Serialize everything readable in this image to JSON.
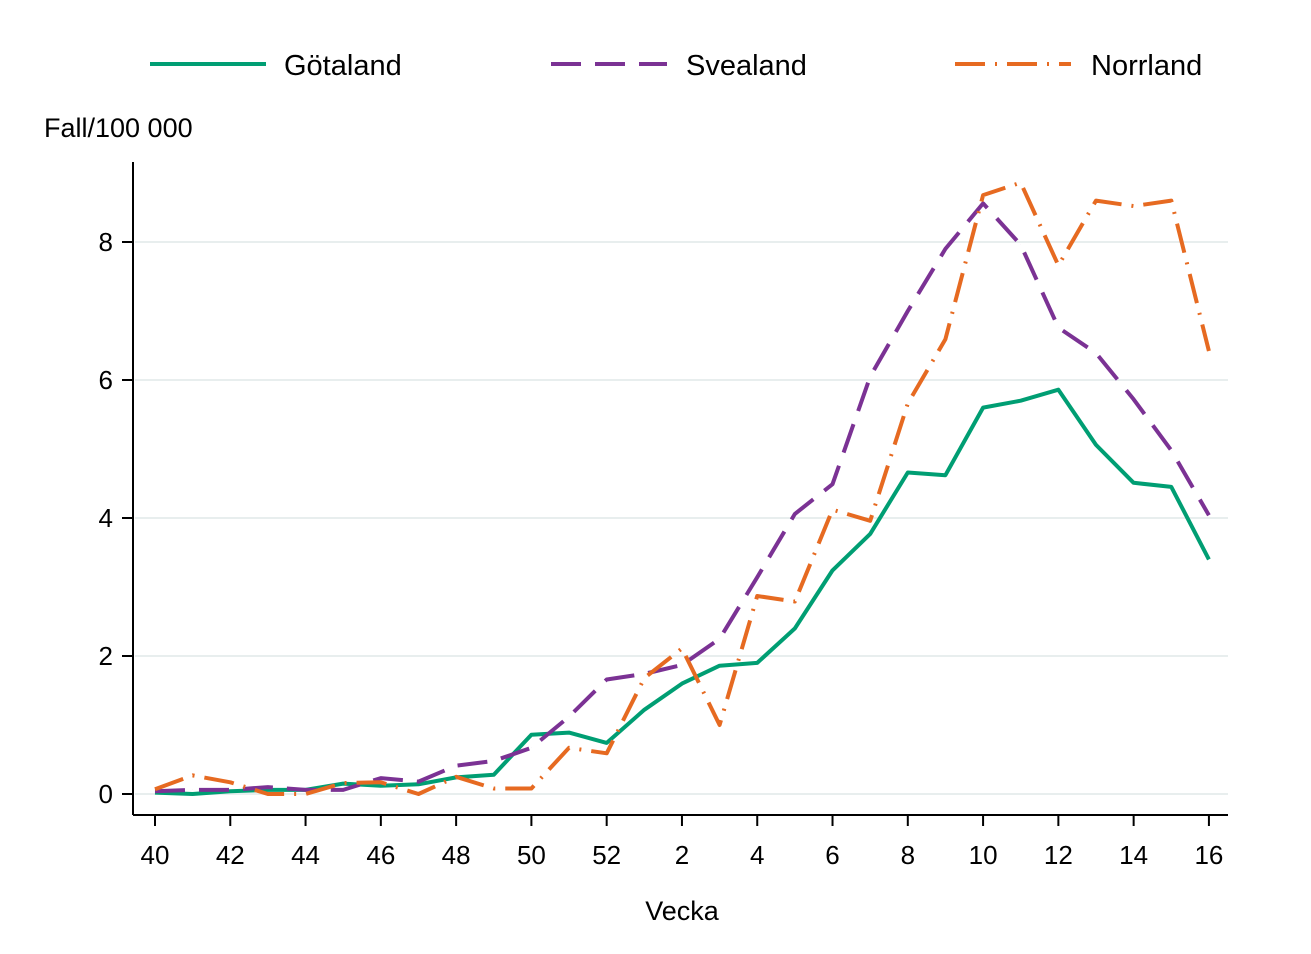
{
  "chart_data": {
    "type": "line",
    "title": "",
    "xlabel": "Vecka",
    "ylabel": "Fall/100 000",
    "ylim": [
      0,
      9
    ],
    "yticks": [
      0,
      2,
      4,
      6,
      8
    ],
    "grid": "horizontal",
    "legend_position": "top",
    "categories": [
      "40",
      "41",
      "42",
      "43",
      "44",
      "45",
      "46",
      "47",
      "48",
      "49",
      "50",
      "51",
      "52",
      "1",
      "2",
      "3",
      "4",
      "5",
      "6",
      "7",
      "8",
      "9",
      "10",
      "11",
      "12",
      "13",
      "14",
      "15",
      "16"
    ],
    "tick_labels": [
      "40",
      "42",
      "44",
      "46",
      "48",
      "50",
      "52",
      "2",
      "4",
      "6",
      "8",
      "10",
      "12",
      "14",
      "16"
    ],
    "series": [
      {
        "name": "Götaland",
        "color": "#009E73",
        "style": "solid",
        "values": [
          0.02,
          0.0,
          0.04,
          0.06,
          0.06,
          0.15,
          0.12,
          0.14,
          0.24,
          0.28,
          0.86,
          0.89,
          0.74,
          1.22,
          1.6,
          1.86,
          1.9,
          2.4,
          3.24,
          3.77,
          4.66,
          4.62,
          5.6,
          5.7,
          5.86,
          5.06,
          4.51,
          4.45,
          3.4
        ]
      },
      {
        "name": "Svealand",
        "color": "#7B3294",
        "style": "dashed",
        "values": [
          0.04,
          0.06,
          0.06,
          0.1,
          0.06,
          0.06,
          0.23,
          0.18,
          0.41,
          0.48,
          0.67,
          1.12,
          1.66,
          1.74,
          1.87,
          2.25,
          3.14,
          4.06,
          4.49,
          6.05,
          7.0,
          7.9,
          8.56,
          7.96,
          6.76,
          6.39,
          5.72,
          4.98,
          4.04
        ]
      },
      {
        "name": "Norrland",
        "color": "#E66A21",
        "style": "dashdot",
        "values": [
          0.07,
          0.27,
          0.17,
          0.0,
          0.0,
          0.16,
          0.17,
          0.0,
          0.25,
          0.08,
          0.08,
          0.67,
          0.59,
          1.68,
          2.11,
          1.0,
          2.87,
          2.79,
          4.12,
          3.96,
          5.66,
          6.59,
          8.68,
          8.86,
          7.66,
          8.6,
          8.52,
          8.6,
          6.42
        ]
      }
    ]
  }
}
